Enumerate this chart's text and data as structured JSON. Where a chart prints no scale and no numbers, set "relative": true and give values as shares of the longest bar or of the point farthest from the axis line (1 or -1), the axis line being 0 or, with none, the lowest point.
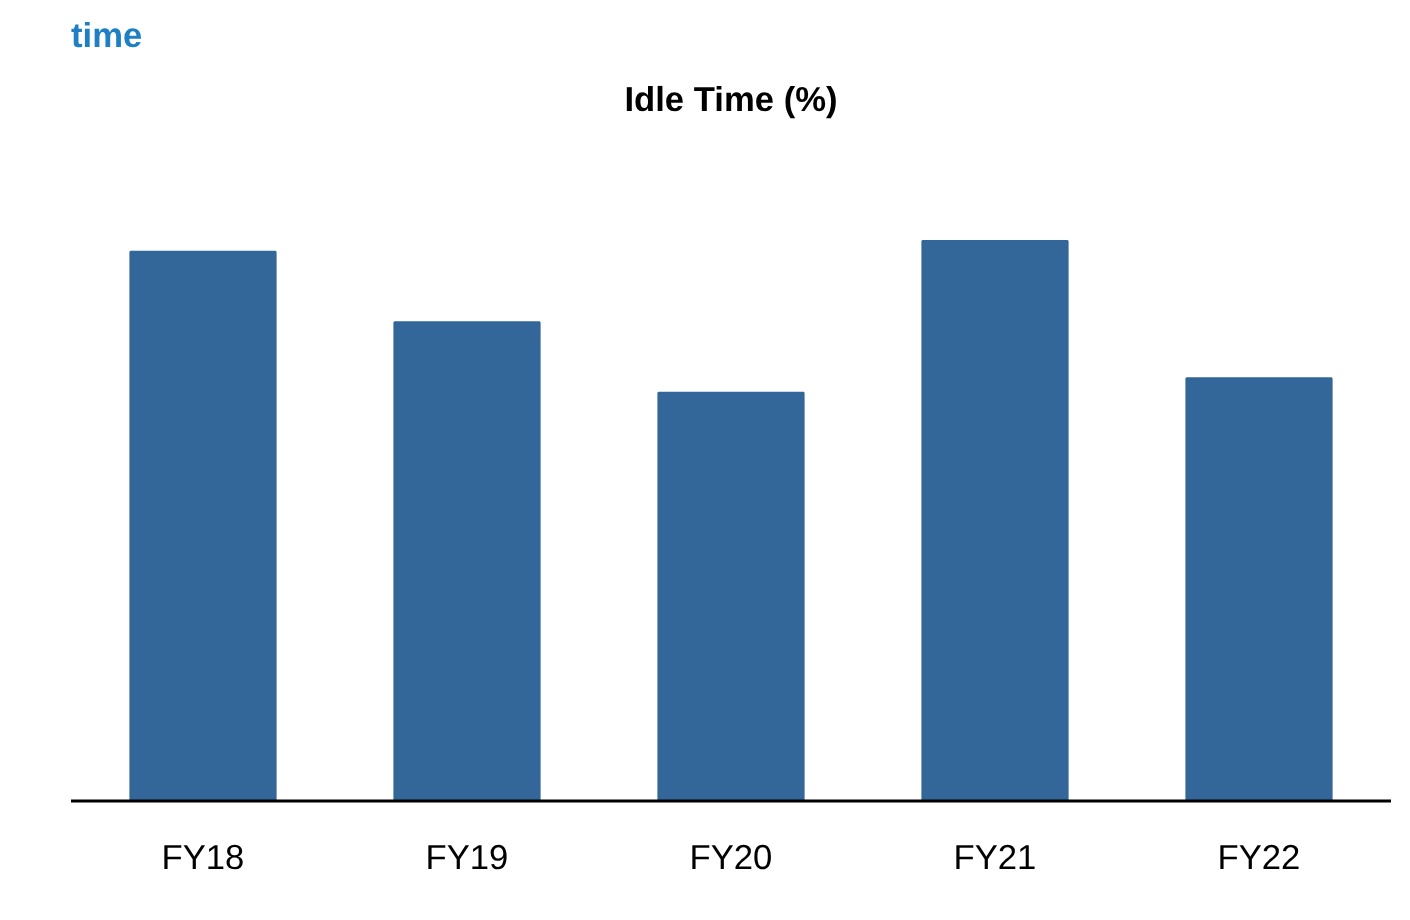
{
  "chart_data": {
    "type": "bar",
    "title": "Idle Time (%)",
    "annotations": [
      "time"
    ],
    "categories": [
      "FY18",
      "FY19",
      "FY20",
      "FY21",
      "FY22"
    ],
    "values": [
      0.981,
      0.855,
      0.729,
      1,
      0.755
    ],
    "color": "#336699",
    "relative": true,
    "grid": false
  }
}
